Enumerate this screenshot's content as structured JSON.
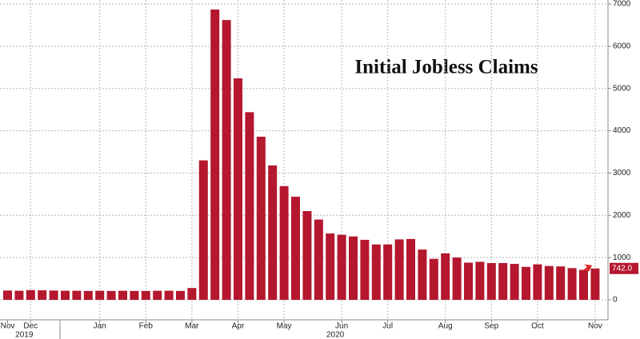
{
  "chart_data": {
    "type": "bar",
    "title": "Initial Jobless Claims",
    "categories": [
      "Nov",
      null,
      "Dec",
      null,
      null,
      null,
      null,
      null,
      "Jan",
      null,
      null,
      null,
      "Feb",
      null,
      null,
      null,
      "Mar",
      null,
      null,
      null,
      "Apr",
      null,
      null,
      null,
      "May",
      null,
      null,
      null,
      null,
      "Jun",
      null,
      null,
      null,
      "Jul",
      null,
      null,
      null,
      null,
      "Aug",
      null,
      null,
      null,
      "Sep",
      null,
      null,
      null,
      "Oct",
      null,
      null,
      null,
      null,
      "Nov"
    ],
    "years": [
      null,
      null,
      "2019",
      null,
      null,
      null,
      null,
      null,
      null,
      null,
      null,
      null,
      null,
      null,
      null,
      null,
      null,
      null,
      null,
      null,
      null,
      null,
      null,
      null,
      null,
      null,
      null,
      null,
      null,
      "2020",
      null,
      null,
      null,
      null,
      null,
      null,
      null,
      null,
      null,
      null,
      null,
      null,
      null,
      null,
      null,
      null,
      null,
      null,
      null,
      null,
      null,
      null
    ],
    "values": [
      220,
      215,
      230,
      225,
      220,
      215,
      215,
      210,
      215,
      210,
      215,
      210,
      210,
      215,
      215,
      210,
      280,
      3300,
      6870,
      6620,
      5240,
      4440,
      3860,
      3180,
      2690,
      2440,
      2100,
      1900,
      1570,
      1540,
      1500,
      1420,
      1310,
      1310,
      1430,
      1440,
      1190,
      970,
      1100,
      1000,
      880,
      900,
      870,
      870,
      850,
      780,
      840,
      800,
      790,
      750,
      710,
      742
    ],
    "color": "#b4172e",
    "last_label": {
      "value": 742,
      "label": "742.0"
    },
    "ylim": [
      0,
      7000
    ],
    "yticks": [
      0,
      1000,
      2000,
      3000,
      4000,
      5000,
      6000,
      7000
    ],
    "grid": true
  }
}
